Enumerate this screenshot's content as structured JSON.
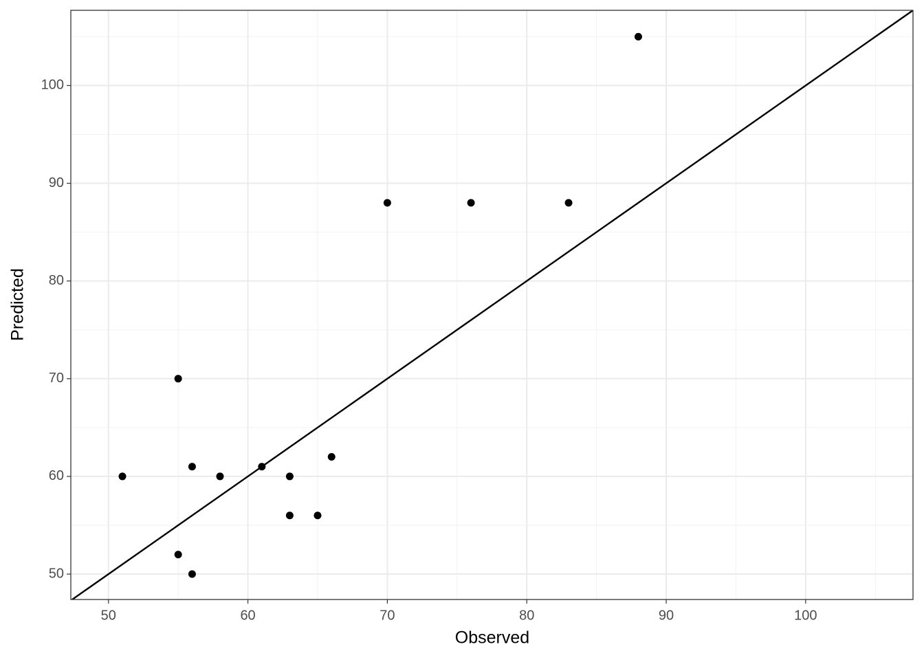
{
  "chart_data": {
    "type": "scatter",
    "x_label": "Observed",
    "y_label": "Predicted",
    "x": [
      51,
      55,
      55,
      56,
      56,
      58,
      61,
      63,
      63,
      65,
      66,
      70,
      76,
      83,
      88
    ],
    "series": [
      {
        "color": "#000000",
        "values": [
          60,
          70,
          52,
          61,
          50,
          60,
          61,
          60,
          56,
          56,
          62,
          88,
          88,
          88,
          105
        ]
      }
    ],
    "xlim": [
      47.3,
      107.7
    ],
    "ylim": [
      47.4,
      107.7
    ],
    "xticks": [
      50,
      60,
      70,
      80,
      90,
      100
    ],
    "yticks": [
      50,
      60,
      70,
      80,
      90,
      100
    ],
    "xminor": [
      55,
      65,
      75,
      85,
      95,
      105
    ],
    "yminor": [
      55,
      65,
      75,
      85,
      95,
      105
    ],
    "grid": true,
    "identity_line": true
  }
}
